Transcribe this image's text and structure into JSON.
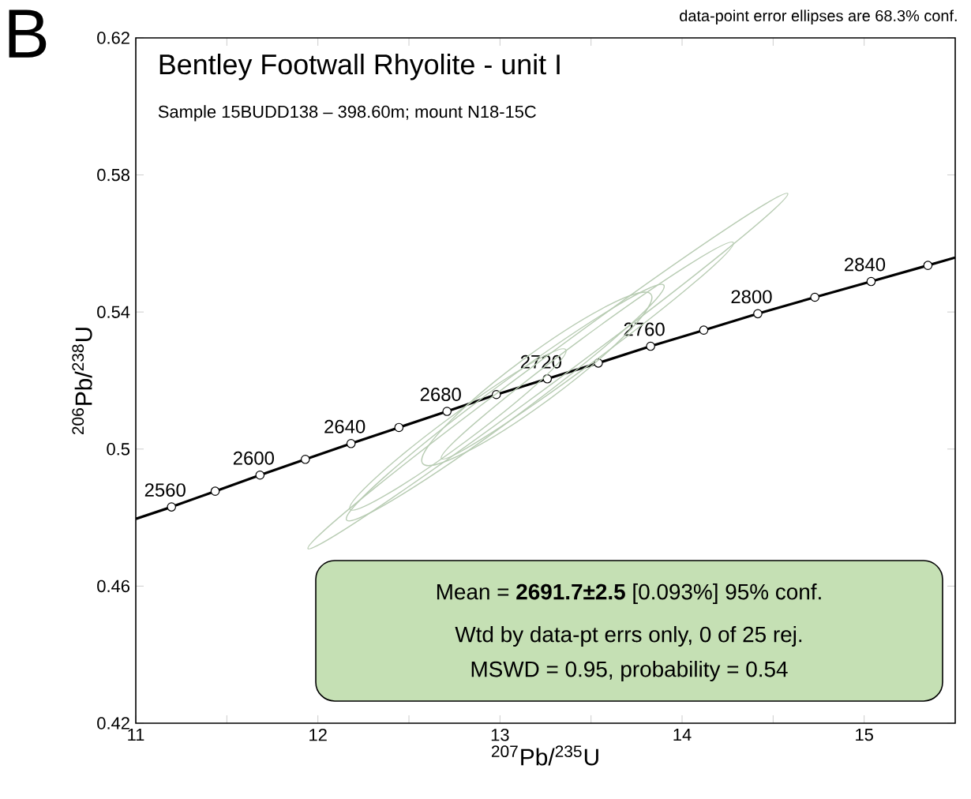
{
  "chart_data": {
    "type": "line",
    "title": "Bentley Footwall Rhyolite - unit I",
    "subtitle": "Sample 15BUDD138 – 398.60m; mount N18-15C",
    "xlabel": "$^{207}$Pb/$^{235}$U",
    "ylabel": "$^{206}$Pb/$^{238}$U",
    "xlim": [
      11,
      15.5
    ],
    "ylim": [
      0.42,
      0.62
    ],
    "xticks": [
      11,
      {
        "value": 11.5,
        "label": null
      },
      12,
      {
        "value": 12.5,
        "label": null
      },
      13,
      {
        "value": 13.5,
        "label": null
      },
      14,
      {
        "value": 14.5,
        "label": null
      },
      15
    ],
    "yticks": [
      0.42,
      0.46,
      0.5,
      0.54,
      0.58,
      0.62
    ],
    "grid": false,
    "series": [
      {
        "color": "#000000",
        "x": [
          11,
          11.196,
          11.436,
          11.682,
          11.931,
          12.182,
          12.445,
          12.709,
          12.98,
          13.26,
          13.54,
          13.827,
          14.119,
          14.416,
          14.729,
          15.038,
          15.35,
          15.5
        ],
        "values": [
          0.4796,
          0.4831,
          0.4877,
          0.4924,
          0.497,
          0.5016,
          0.5063,
          0.511,
          0.5159,
          0.5205,
          0.5251,
          0.53,
          0.5347,
          0.5395,
          0.5443,
          0.5489,
          0.5536,
          0.5559
        ]
      },
      {
        "type": "scatter",
        "color": "#ffffff",
        "marker": "circle",
        "x": [
          11.196,
          11.436,
          11.682,
          11.931,
          12.182,
          12.445,
          12.709,
          12.98,
          13.26,
          13.54,
          13.827,
          14.119,
          14.416,
          14.729,
          15.038,
          15.35
        ],
        "values": [
          0.4831,
          0.4877,
          0.4924,
          0.497,
          0.5016,
          0.5063,
          0.511,
          0.5159,
          0.5205,
          0.5251,
          0.53,
          0.5347,
          0.5395,
          0.5443,
          0.5489,
          0.5536
        ]
      }
    ],
    "annotations": [
      "B",
      "data-point error ellipses are 68.3% conf.",
      "Mean = **2691.7±2.5** [0.093%]  95% conf.",
      "Wtd by data-pt errs only, 0 of 25 rej.",
      "MSWD = 0.95, probability = 0.54",
      {
        "text": "2560",
        "x": 11.196,
        "y": 0.4831
      },
      {
        "text": "2600",
        "x": 11.682,
        "y": 0.4924
      },
      {
        "text": "2640",
        "x": 12.182,
        "y": 0.5016
      },
      {
        "text": "2680",
        "x": 12.709,
        "y": 0.511
      },
      {
        "text": "2720",
        "x": 13.26,
        "y": 0.5205
      },
      {
        "text": "2760",
        "x": 13.827,
        "y": 0.53
      },
      {
        "text": "2800",
        "x": 14.416,
        "y": 0.5395
      },
      {
        "text": "2840",
        "x": 15.038,
        "y": 0.5489
      }
    ]
  }
}
